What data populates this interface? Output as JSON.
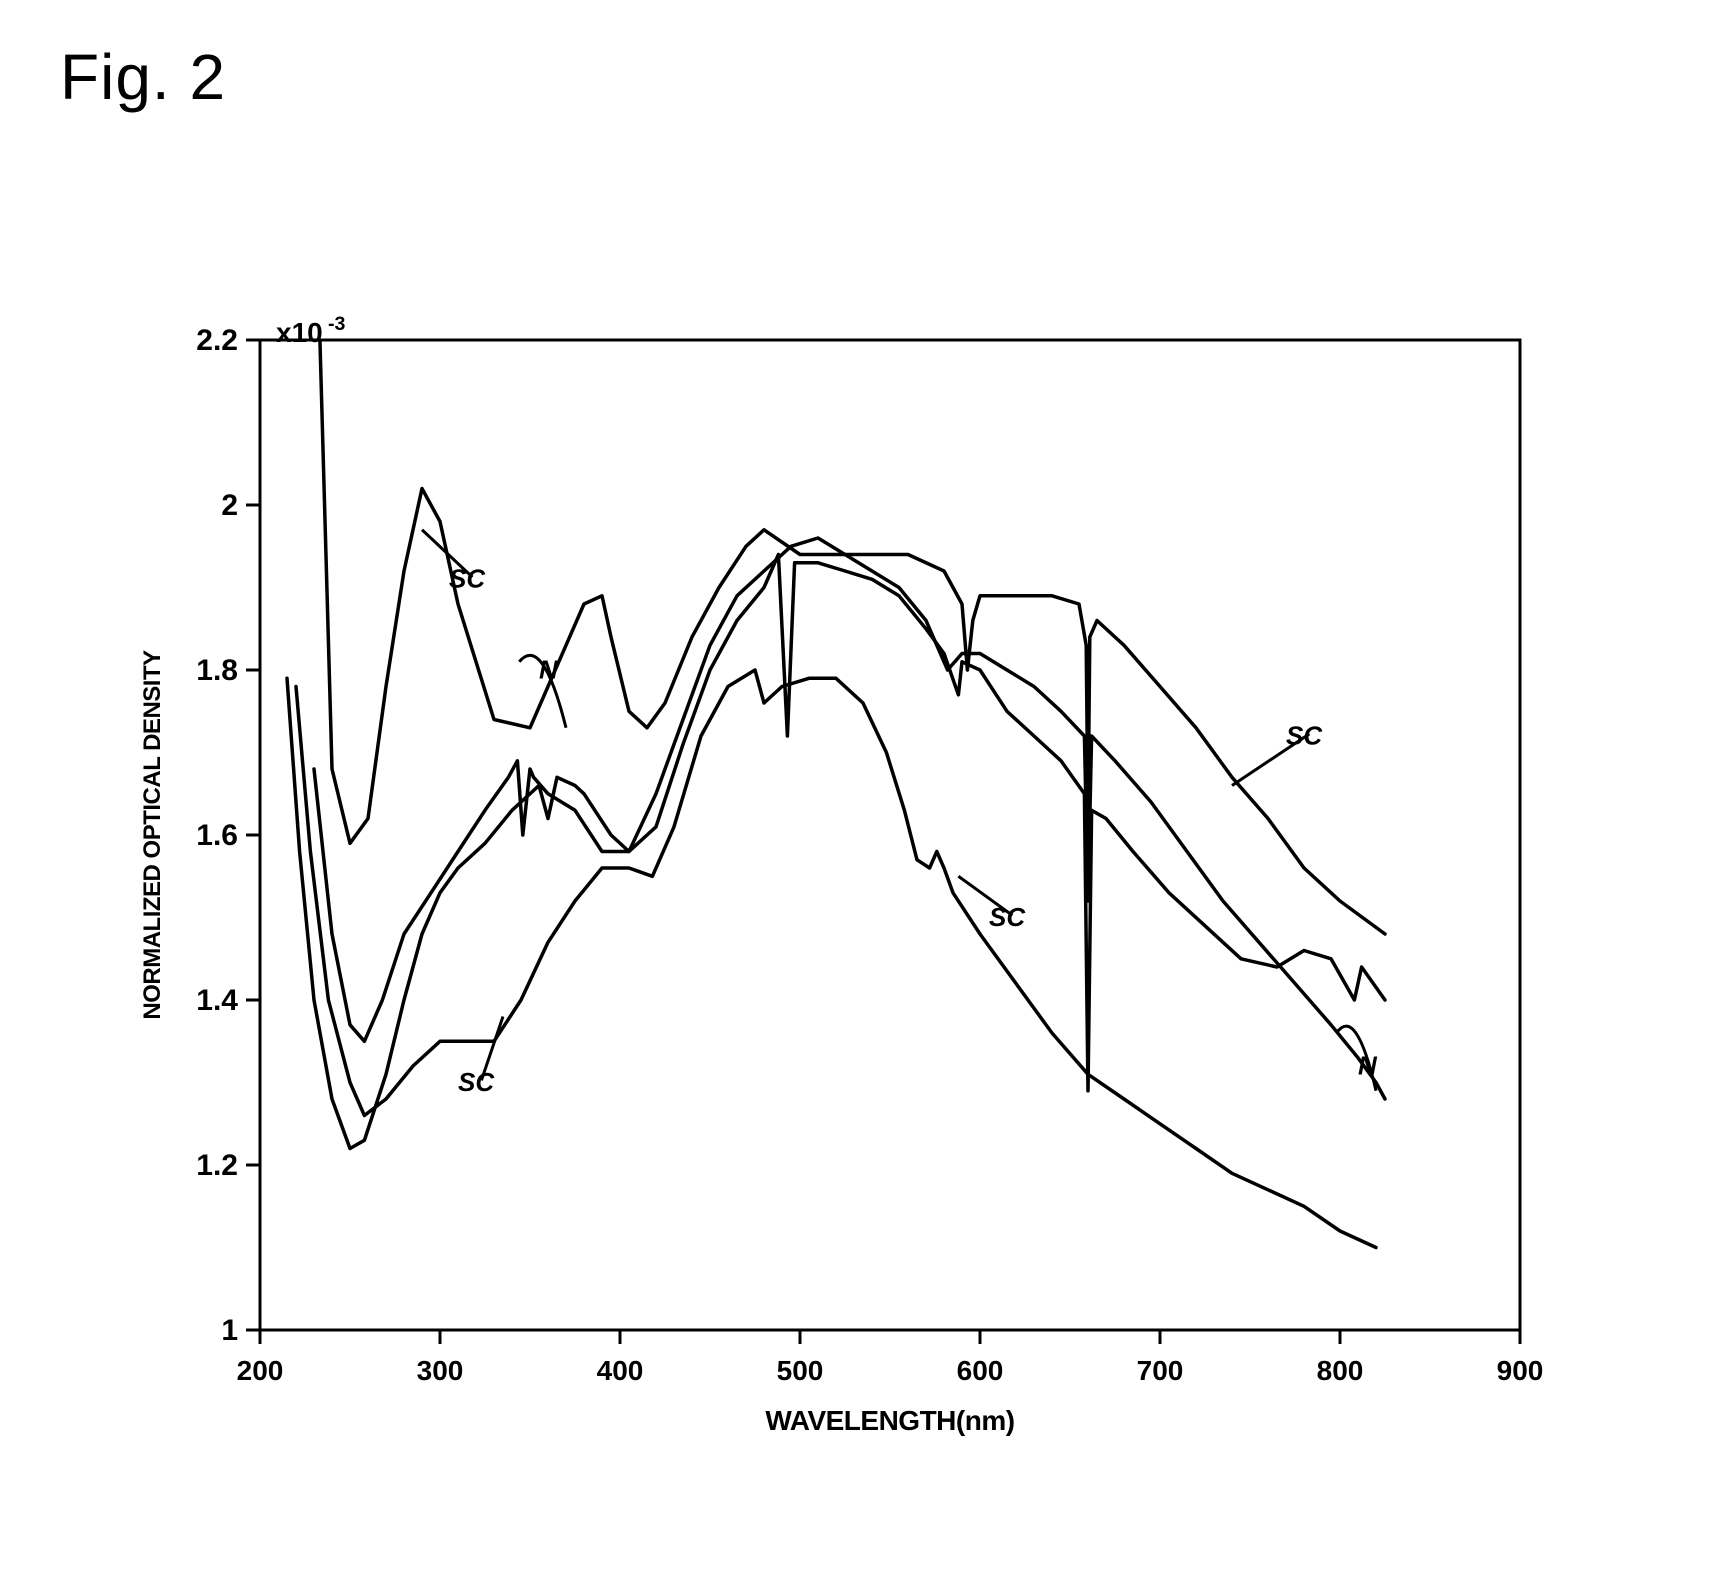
{
  "figure": {
    "title": "Fig. 2",
    "title_fontsize": 64,
    "title_color": "#000000"
  },
  "chart": {
    "type": "line",
    "background_color": "#ffffff",
    "stroke_color": "#000000",
    "line_width": 3.5,
    "axis_line_width": 3,
    "x": {
      "label": "WAVELENGTH(nm)",
      "label_fontsize": 28,
      "lim": [
        200,
        900
      ],
      "ticks": [
        200,
        300,
        400,
        500,
        600,
        700,
        800,
        900
      ],
      "tick_fontsize": 28
    },
    "y": {
      "label": "NORMALIZED OPTICAL DENSITY",
      "label_fontsize": 24,
      "lim": [
        1.0,
        2.2
      ],
      "ticks": [
        1.0,
        1.2,
        1.4,
        1.6,
        1.8,
        2.0,
        2.2
      ],
      "tick_labels": [
        "1",
        "1.2",
        "1.4",
        "1.6",
        "1.8",
        "2",
        "2.2"
      ],
      "tick_fontsize": 30,
      "exponent": "x10",
      "exponent_sup": "-3",
      "exponent_fontsize": 28
    },
    "series": [
      {
        "name": "SC-upper",
        "points": [
          [
            225,
            2.3
          ],
          [
            232,
            2.3
          ],
          [
            240,
            1.68
          ],
          [
            250,
            1.59
          ],
          [
            260,
            1.62
          ],
          [
            270,
            1.78
          ],
          [
            280,
            1.92
          ],
          [
            290,
            2.02
          ],
          [
            300,
            1.98
          ],
          [
            310,
            1.88
          ],
          [
            330,
            1.74
          ],
          [
            350,
            1.73
          ],
          [
            360,
            1.78
          ],
          [
            370,
            1.83
          ],
          [
            380,
            1.88
          ],
          [
            390,
            1.89
          ],
          [
            395,
            1.84
          ],
          [
            405,
            1.75
          ],
          [
            415,
            1.73
          ],
          [
            425,
            1.76
          ],
          [
            440,
            1.84
          ],
          [
            455,
            1.9
          ],
          [
            470,
            1.95
          ],
          [
            480,
            1.97
          ],
          [
            500,
            1.94
          ],
          [
            520,
            1.94
          ],
          [
            540,
            1.94
          ],
          [
            560,
            1.94
          ],
          [
            580,
            1.92
          ],
          [
            590,
            1.88
          ],
          [
            593,
            1.8
          ],
          [
            596,
            1.86
          ],
          [
            600,
            1.89
          ],
          [
            620,
            1.89
          ],
          [
            640,
            1.89
          ],
          [
            655,
            1.88
          ],
          [
            659,
            1.83
          ],
          [
            660,
            1.62
          ],
          [
            661,
            1.84
          ],
          [
            665,
            1.86
          ],
          [
            680,
            1.83
          ],
          [
            700,
            1.78
          ],
          [
            720,
            1.73
          ],
          [
            740,
            1.67
          ],
          [
            760,
            1.62
          ],
          [
            780,
            1.56
          ],
          [
            800,
            1.52
          ],
          [
            825,
            1.48
          ]
        ]
      },
      {
        "name": "SC-mid",
        "points": [
          [
            215,
            1.79
          ],
          [
            222,
            1.58
          ],
          [
            230,
            1.4
          ],
          [
            240,
            1.28
          ],
          [
            250,
            1.22
          ],
          [
            258,
            1.23
          ],
          [
            270,
            1.31
          ],
          [
            280,
            1.4
          ],
          [
            290,
            1.48
          ],
          [
            300,
            1.53
          ],
          [
            310,
            1.56
          ],
          [
            325,
            1.59
          ],
          [
            340,
            1.63
          ],
          [
            355,
            1.66
          ],
          [
            360,
            1.62
          ],
          [
            365,
            1.67
          ],
          [
            375,
            1.66
          ],
          [
            380,
            1.65
          ],
          [
            395,
            1.6
          ],
          [
            405,
            1.58
          ],
          [
            420,
            1.61
          ],
          [
            435,
            1.71
          ],
          [
            450,
            1.8
          ],
          [
            465,
            1.86
          ],
          [
            480,
            1.9
          ],
          [
            488,
            1.94
          ],
          [
            493,
            1.72
          ],
          [
            497,
            1.93
          ],
          [
            510,
            1.93
          ],
          [
            525,
            1.92
          ],
          [
            540,
            1.91
          ],
          [
            555,
            1.89
          ],
          [
            570,
            1.85
          ],
          [
            580,
            1.82
          ],
          [
            588,
            1.77
          ],
          [
            590,
            1.81
          ],
          [
            600,
            1.8
          ],
          [
            615,
            1.75
          ],
          [
            630,
            1.72
          ],
          [
            645,
            1.69
          ],
          [
            658,
            1.65
          ],
          [
            660,
            1.29
          ],
          [
            662,
            1.63
          ],
          [
            670,
            1.62
          ],
          [
            685,
            1.58
          ],
          [
            705,
            1.53
          ],
          [
            725,
            1.49
          ],
          [
            745,
            1.45
          ],
          [
            765,
            1.44
          ],
          [
            780,
            1.46
          ],
          [
            795,
            1.45
          ],
          [
            808,
            1.4
          ],
          [
            812,
            1.44
          ],
          [
            825,
            1.4
          ]
        ]
      },
      {
        "name": "SC-low",
        "points": [
          [
            220,
            1.78
          ],
          [
            228,
            1.58
          ],
          [
            238,
            1.4
          ],
          [
            250,
            1.3
          ],
          [
            258,
            1.26
          ],
          [
            270,
            1.28
          ],
          [
            285,
            1.32
          ],
          [
            300,
            1.35
          ],
          [
            315,
            1.35
          ],
          [
            330,
            1.35
          ],
          [
            345,
            1.4
          ],
          [
            360,
            1.47
          ],
          [
            375,
            1.52
          ],
          [
            390,
            1.56
          ],
          [
            405,
            1.56
          ],
          [
            418,
            1.55
          ],
          [
            430,
            1.61
          ],
          [
            445,
            1.72
          ],
          [
            460,
            1.78
          ],
          [
            475,
            1.8
          ],
          [
            480,
            1.76
          ],
          [
            490,
            1.78
          ],
          [
            505,
            1.79
          ],
          [
            520,
            1.79
          ],
          [
            535,
            1.76
          ],
          [
            548,
            1.7
          ],
          [
            558,
            1.63
          ],
          [
            565,
            1.57
          ],
          [
            572,
            1.56
          ],
          [
            576,
            1.58
          ],
          [
            580,
            1.56
          ],
          [
            585,
            1.53
          ],
          [
            600,
            1.48
          ],
          [
            620,
            1.42
          ],
          [
            640,
            1.36
          ],
          [
            660,
            1.31
          ],
          [
            680,
            1.28
          ],
          [
            700,
            1.25
          ],
          [
            720,
            1.22
          ],
          [
            740,
            1.19
          ],
          [
            760,
            1.17
          ],
          [
            780,
            1.15
          ],
          [
            800,
            1.12
          ],
          [
            820,
            1.1
          ]
        ]
      },
      {
        "name": "N",
        "points": [
          [
            230,
            1.68
          ],
          [
            240,
            1.48
          ],
          [
            250,
            1.37
          ],
          [
            258,
            1.35
          ],
          [
            268,
            1.4
          ],
          [
            280,
            1.48
          ],
          [
            295,
            1.53
          ],
          [
            310,
            1.58
          ],
          [
            325,
            1.63
          ],
          [
            338,
            1.67
          ],
          [
            343,
            1.69
          ],
          [
            346,
            1.6
          ],
          [
            350,
            1.68
          ],
          [
            352,
            1.67
          ],
          [
            360,
            1.65
          ],
          [
            375,
            1.63
          ],
          [
            390,
            1.58
          ],
          [
            405,
            1.58
          ],
          [
            420,
            1.65
          ],
          [
            435,
            1.74
          ],
          [
            450,
            1.83
          ],
          [
            465,
            1.89
          ],
          [
            480,
            1.92
          ],
          [
            495,
            1.95
          ],
          [
            510,
            1.96
          ],
          [
            525,
            1.94
          ],
          [
            540,
            1.92
          ],
          [
            555,
            1.9
          ],
          [
            570,
            1.86
          ],
          [
            582,
            1.8
          ],
          [
            590,
            1.82
          ],
          [
            600,
            1.82
          ],
          [
            615,
            1.8
          ],
          [
            630,
            1.78
          ],
          [
            645,
            1.75
          ],
          [
            658,
            1.72
          ],
          [
            660,
            1.52
          ],
          [
            662,
            1.72
          ],
          [
            675,
            1.69
          ],
          [
            695,
            1.64
          ],
          [
            715,
            1.58
          ],
          [
            735,
            1.52
          ],
          [
            755,
            1.47
          ],
          [
            775,
            1.42
          ],
          [
            795,
            1.37
          ],
          [
            810,
            1.33
          ],
          [
            820,
            1.3
          ],
          [
            825,
            1.28
          ]
        ]
      }
    ],
    "curve_labels": [
      {
        "text": "SC",
        "x": 305,
        "y": 1.9,
        "fontsize": 26,
        "pointer_to": [
          290,
          1.97
        ]
      },
      {
        "text": "N",
        "x": 355,
        "y": 1.79,
        "fontsize": 26,
        "arc": true,
        "arc_from": [
          344,
          1.81
        ],
        "arc_to": [
          370,
          1.73
        ]
      },
      {
        "text": "SC",
        "x": 310,
        "y": 1.29,
        "fontsize": 26,
        "pointer_to": [
          335,
          1.38
        ]
      },
      {
        "text": "SC",
        "x": 605,
        "y": 1.49,
        "fontsize": 26,
        "pointer_to": [
          588,
          1.55
        ]
      },
      {
        "text": "SC",
        "x": 770,
        "y": 1.71,
        "fontsize": 26,
        "pointer_to": [
          740,
          1.66
        ]
      },
      {
        "text": "N",
        "x": 810,
        "y": 1.31,
        "fontsize": 26,
        "arc": true,
        "arc_from": [
          798,
          1.36
        ],
        "arc_to": [
          820,
          1.29
        ]
      }
    ]
  }
}
